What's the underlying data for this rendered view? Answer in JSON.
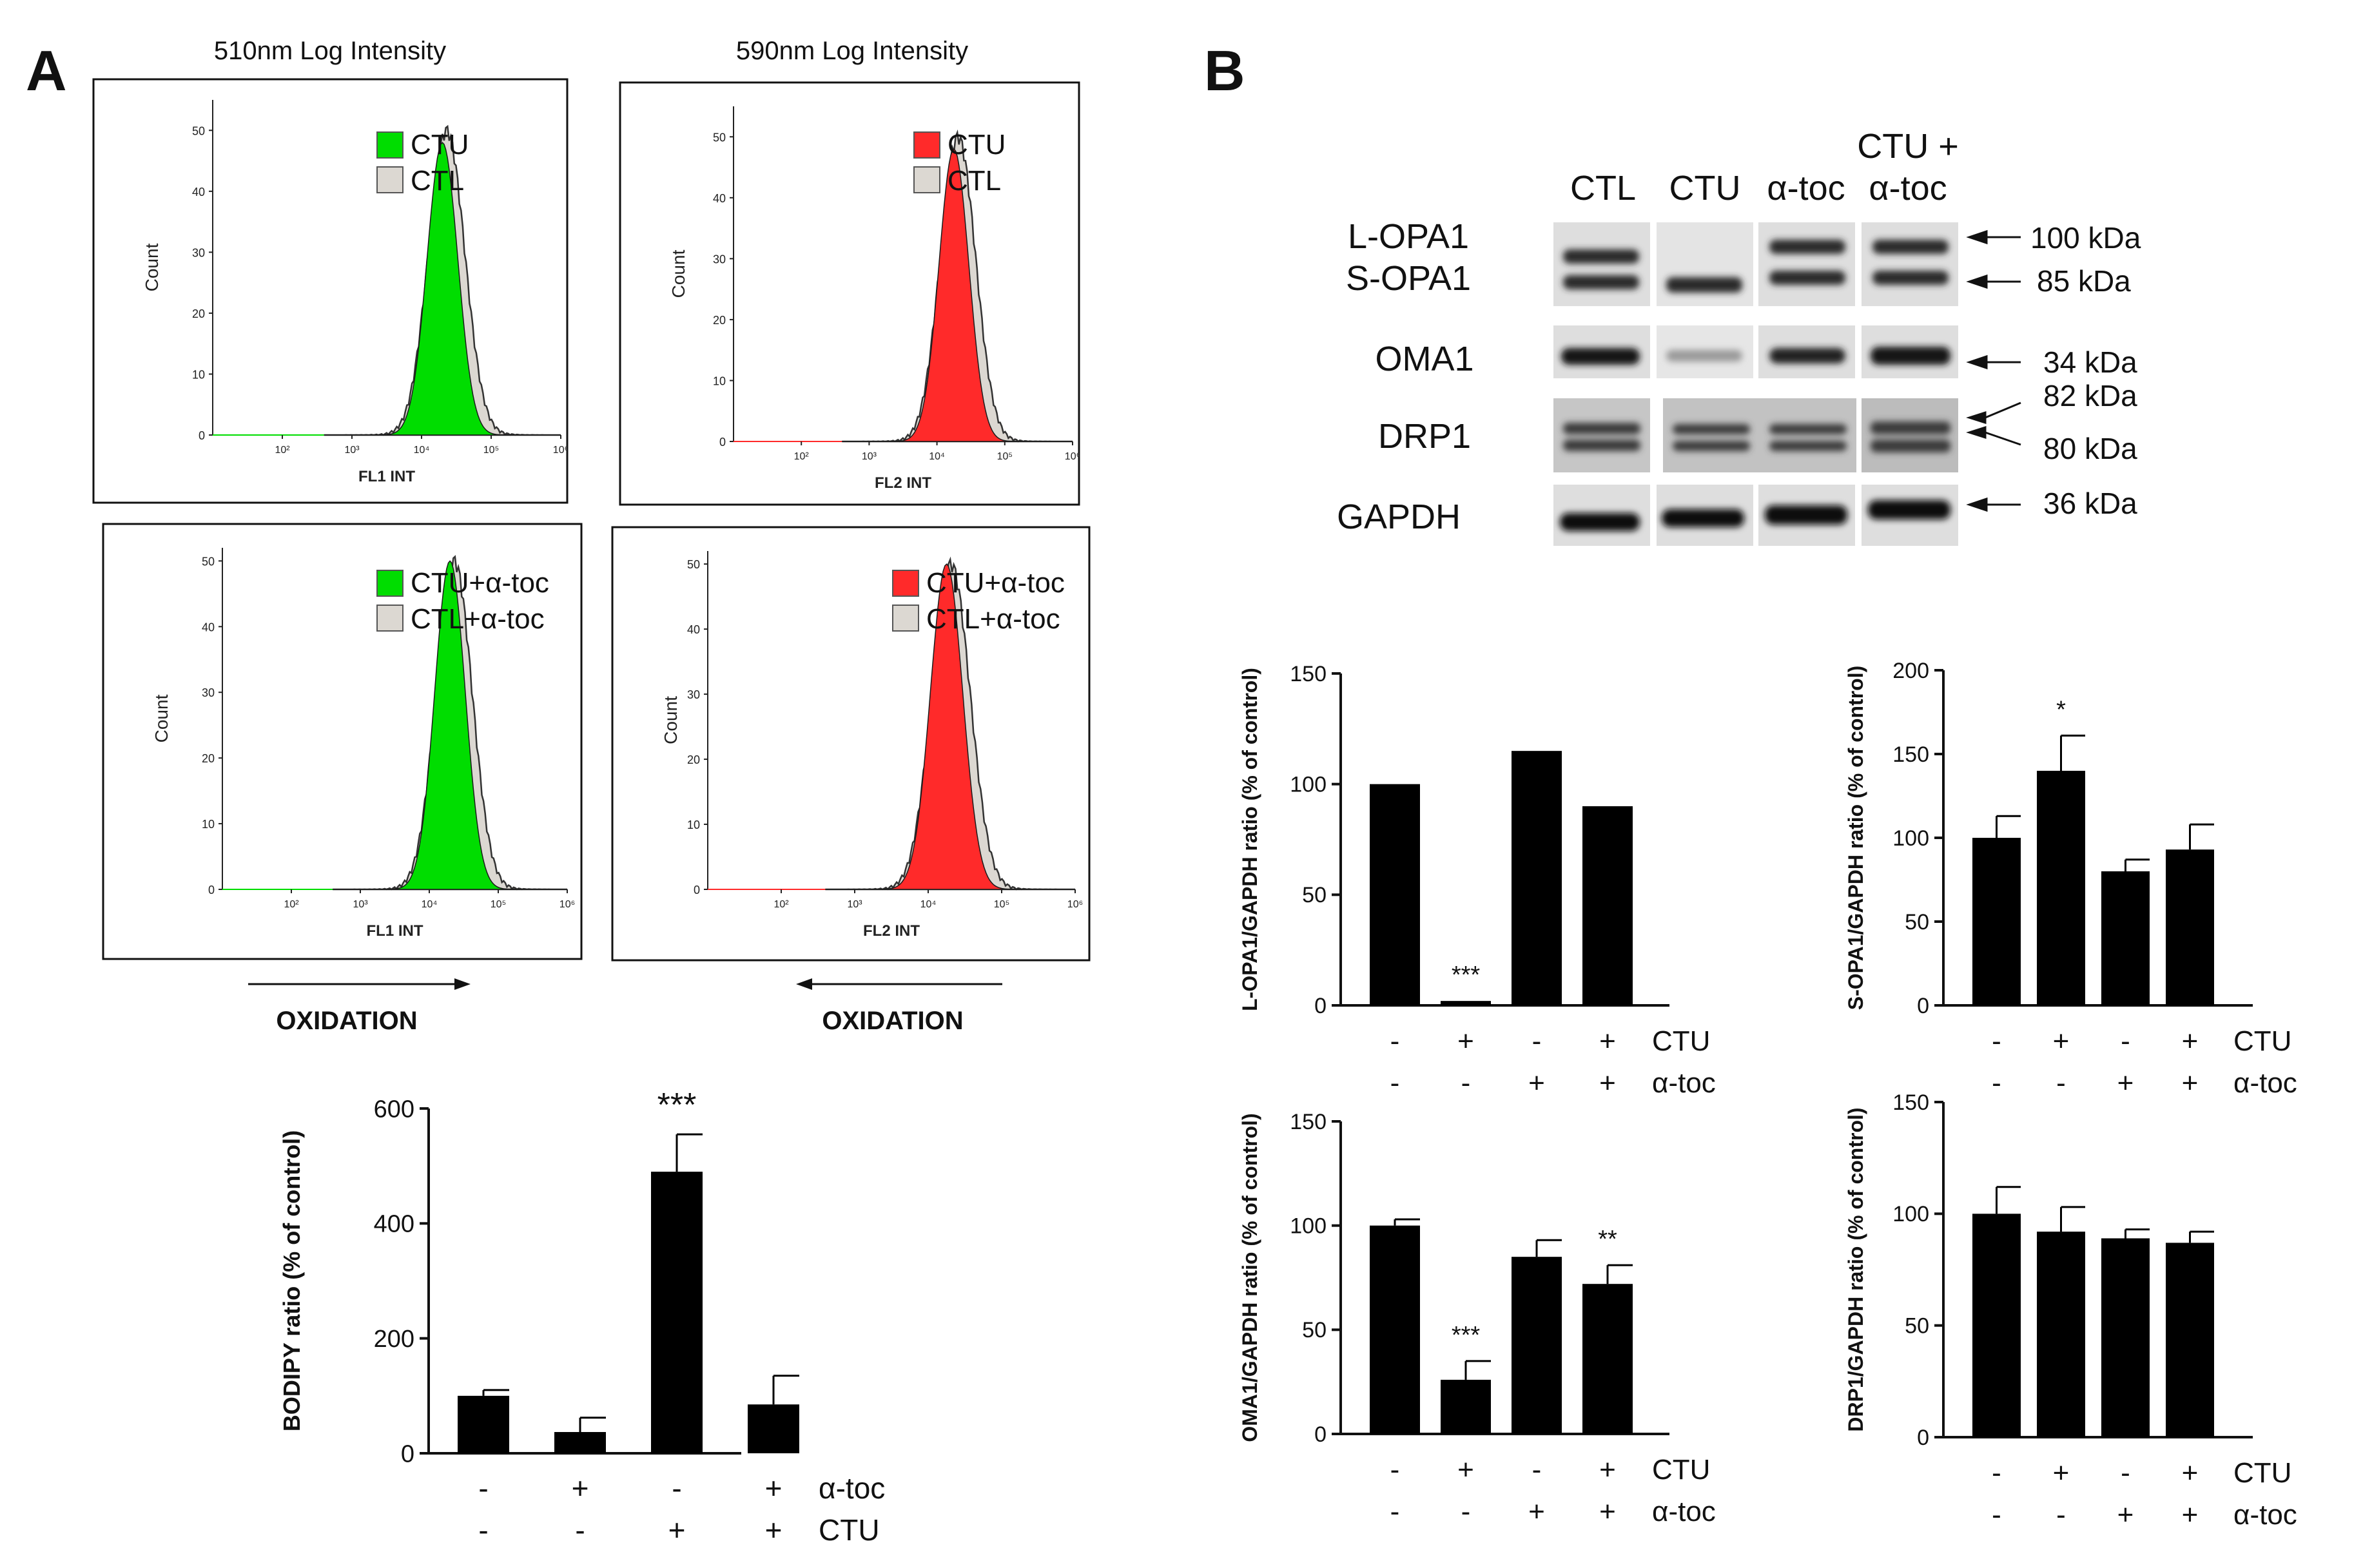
{
  "panels": {
    "a": "A",
    "b": "B"
  },
  "flow": {
    "title_left": "510nm Log Intensity",
    "title_right": "590nm Log Intensity",
    "ylabel": "Count",
    "yticks": [
      "0",
      "10",
      "20",
      "30",
      "40",
      "50"
    ],
    "xticks": [
      "10²",
      "10³",
      "10⁴",
      "10⁵",
      "10⁶"
    ],
    "xlabel_fl1": "FL1 INT",
    "xlabel_fl2": "FL2 INT",
    "oxidation": "OXIDATION",
    "legend": {
      "ctu": "CTU",
      "ctl": "CTL",
      "ctu_atoc": "CTU+α-toc",
      "ctl_atoc": "CTL+α-toc"
    },
    "colors": {
      "green": "#00dd00",
      "red": "#ff2a2a",
      "gray": "#dcd8d2"
    }
  },
  "blot": {
    "lanes": [
      "CTL",
      "CTU",
      "α-toc",
      "CTU +",
      "α-toc"
    ],
    "rows": [
      "L-OPA1",
      "S-OPA1",
      "OMA1",
      "DRP1",
      "GAPDH"
    ],
    "kda": [
      "100 kDa",
      "85 kDa",
      "34 kDa",
      "82 kDa",
      "80 kDa",
      "36 kDa"
    ]
  },
  "chart_data": [
    {
      "type": "bar",
      "panel": "A",
      "title": "",
      "categories": [
        "1",
        "2",
        "3",
        "4"
      ],
      "values": [
        100,
        37,
        490,
        85
      ],
      "errors": [
        10,
        25,
        65,
        50
      ],
      "ylabel": "BODIPY ratio (% of control)",
      "ylim": [
        0,
        600
      ],
      "yticks": [
        "0",
        "200",
        "400",
        "600"
      ],
      "significance": [
        "",
        "",
        "***",
        ""
      ],
      "row1": {
        "label": "α-toc",
        "marks": [
          "-",
          "+",
          "-",
          "+"
        ]
      },
      "row2": {
        "label": "CTU",
        "marks": [
          "-",
          "-",
          "+",
          "+"
        ]
      }
    },
    {
      "type": "bar",
      "panel": "B",
      "title": "",
      "categories": [
        "1",
        "2",
        "3",
        "4"
      ],
      "values": [
        100,
        2,
        115,
        90
      ],
      "errors": [
        0,
        0,
        0,
        0
      ],
      "ylabel": "L-OPA1/GAPDH ratio (% of control)",
      "ylim": [
        0,
        150
      ],
      "yticks": [
        "0",
        "50",
        "100",
        "150"
      ],
      "significance": [
        "",
        "***",
        "",
        ""
      ],
      "row1": {
        "label": "CTU",
        "marks": [
          "-",
          "+",
          "-",
          "+"
        ]
      },
      "row2": {
        "label": "α-toc",
        "marks": [
          "-",
          "-",
          "+",
          "+"
        ]
      }
    },
    {
      "type": "bar",
      "panel": "B",
      "title": "",
      "categories": [
        "1",
        "2",
        "3",
        "4"
      ],
      "values": [
        100,
        140,
        80,
        93
      ],
      "errors": [
        13,
        21,
        7,
        15
      ],
      "ylabel": "S-OPA1/GAPDH ratio (% of control)",
      "ylim": [
        0,
        200
      ],
      "yticks": [
        "0",
        "50",
        "100",
        "150",
        "200"
      ],
      "significance": [
        "",
        "*",
        "",
        ""
      ],
      "row1": {
        "label": "CTU",
        "marks": [
          "-",
          "+",
          "-",
          "+"
        ]
      },
      "row2": {
        "label": "α-toc",
        "marks": [
          "-",
          "-",
          "+",
          "+"
        ]
      }
    },
    {
      "type": "bar",
      "panel": "B",
      "title": "",
      "categories": [
        "1",
        "2",
        "3",
        "4"
      ],
      "values": [
        100,
        26,
        85,
        72
      ],
      "errors": [
        3,
        9,
        8,
        9
      ],
      "ylabel": "OMA1/GAPDH ratio (% of control)",
      "ylim": [
        0,
        150
      ],
      "yticks": [
        "0",
        "50",
        "100",
        "150"
      ],
      "significance": [
        "",
        "***",
        "",
        "**"
      ],
      "row1": {
        "label": "CTU",
        "marks": [
          "-",
          "+",
          "-",
          "+"
        ]
      },
      "row2": {
        "label": "α-toc",
        "marks": [
          "-",
          "-",
          "+",
          "+"
        ]
      }
    },
    {
      "type": "bar",
      "panel": "B",
      "title": "",
      "categories": [
        "1",
        "2",
        "3",
        "4"
      ],
      "values": [
        100,
        92,
        89,
        87
      ],
      "errors": [
        12,
        11,
        4,
        5
      ],
      "ylabel": "DRP1/GAPDH ratio (% of control)",
      "ylim": [
        0,
        150
      ],
      "yticks": [
        "0",
        "50",
        "100",
        "150"
      ],
      "significance": [
        "",
        "",
        "",
        ""
      ],
      "row1": {
        "label": "CTU",
        "marks": [
          "-",
          "+",
          "-",
          "+"
        ]
      },
      "row2": {
        "label": "α-toc",
        "marks": [
          "-",
          "-",
          "+",
          "+"
        ]
      }
    }
  ]
}
